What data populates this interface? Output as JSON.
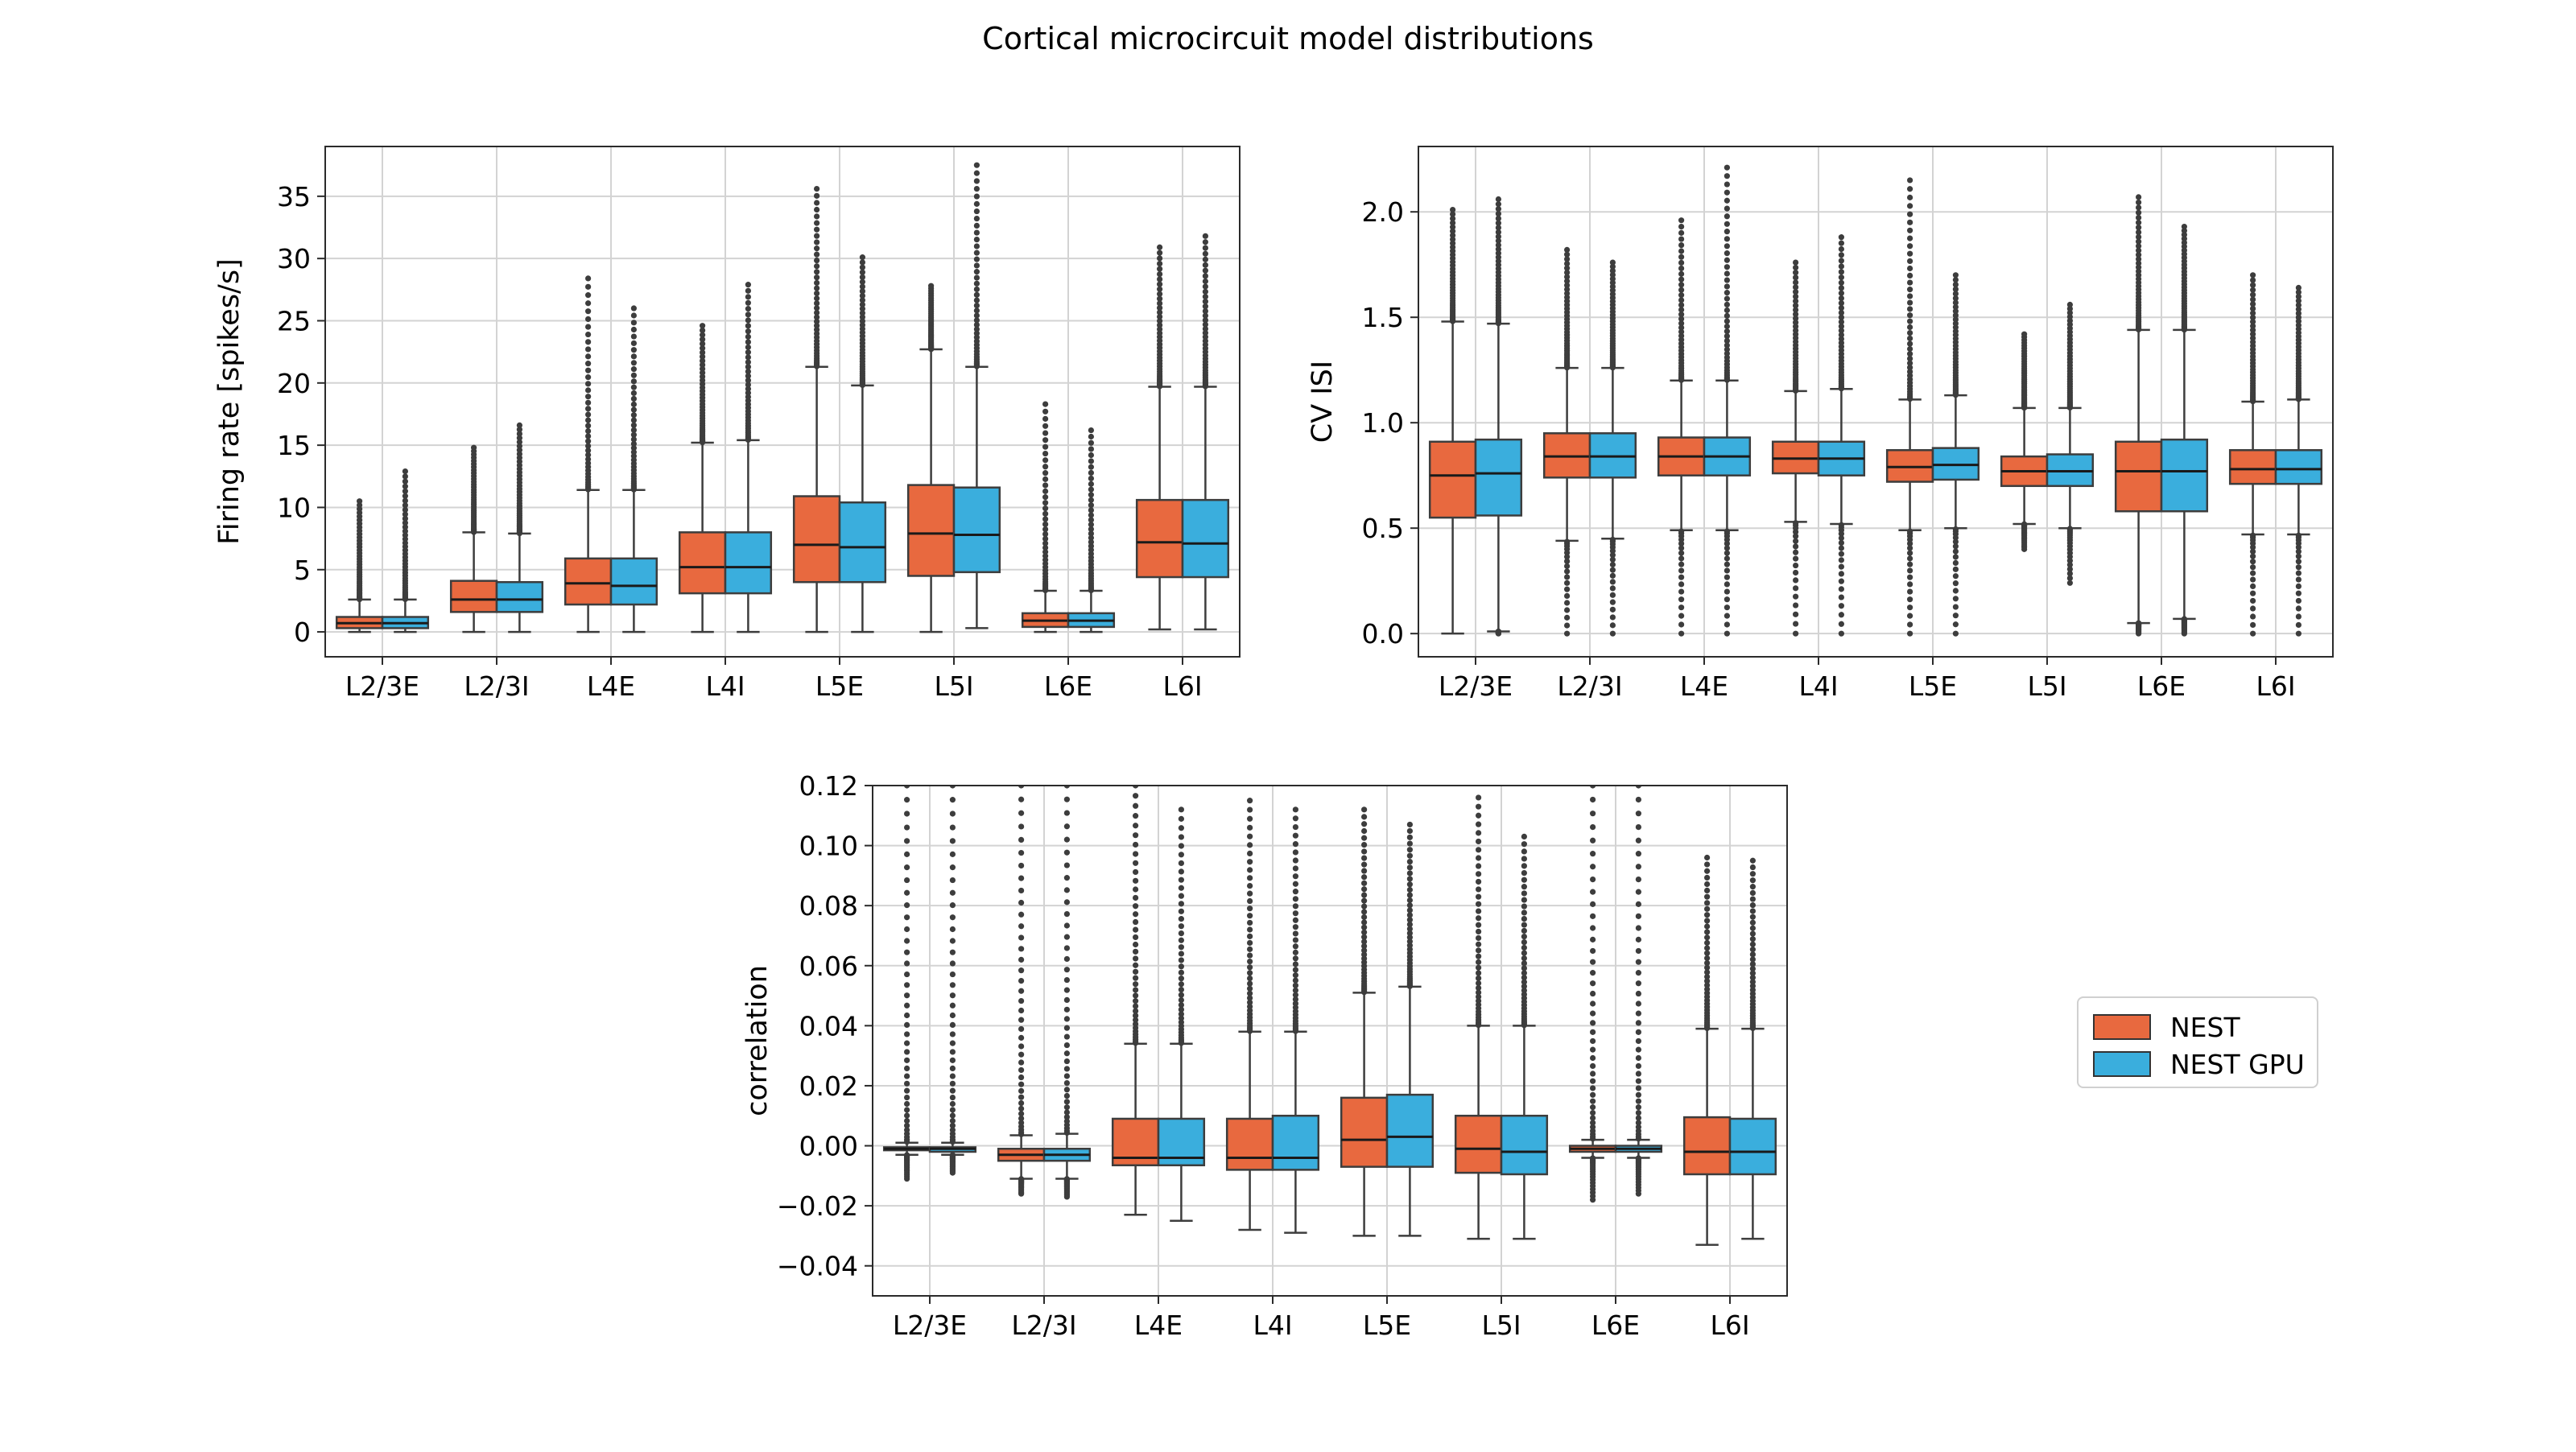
{
  "title": "Cortical microcircuit model distributions",
  "colors": {
    "nest": "#e8693f",
    "nestgpu": "#3aaedd"
  },
  "legend": {
    "items": [
      {
        "label": "NEST",
        "color": "#e8693f"
      },
      {
        "label": "NEST GPU",
        "color": "#3aaedd"
      }
    ]
  },
  "chart_data": [
    {
      "type": "box",
      "title": "",
      "xlabel": "",
      "ylabel": "Firing rate [spikes/s]",
      "categories": [
        "L2/3E",
        "L2/3I",
        "L4E",
        "L4I",
        "L5E",
        "L5I",
        "L6E",
        "L6I"
      ],
      "ylim": [
        -2,
        39
      ],
      "yticks": [
        0,
        5,
        10,
        15,
        20,
        25,
        30,
        35
      ],
      "ytick_labels": [
        "0",
        "5",
        "10",
        "15",
        "20",
        "25",
        "30",
        "35"
      ],
      "grid": true,
      "series": [
        {
          "name": "NEST",
          "boxes": [
            {
              "whislo": 0.0,
              "q1": 0.3,
              "med": 0.7,
              "q3": 1.2,
              "whishi": 2.6,
              "fmin": 0.0,
              "fmax": 10.5
            },
            {
              "whislo": 0.0,
              "q1": 1.6,
              "med": 2.6,
              "q3": 4.1,
              "whishi": 8.0,
              "fmin": 0.0,
              "fmax": 14.8
            },
            {
              "whislo": 0.0,
              "q1": 2.2,
              "med": 3.9,
              "q3": 5.9,
              "whishi": 11.4,
              "fmin": 0.0,
              "fmax": 28.4
            },
            {
              "whislo": 0.0,
              "q1": 3.1,
              "med": 5.2,
              "q3": 8.0,
              "whishi": 15.2,
              "fmin": 0.0,
              "fmax": 24.6
            },
            {
              "whislo": 0.0,
              "q1": 4.0,
              "med": 7.0,
              "q3": 10.9,
              "whishi": 21.3,
              "fmin": 0.0,
              "fmax": 35.6
            },
            {
              "whislo": 0.0,
              "q1": 4.5,
              "med": 7.9,
              "q3": 11.8,
              "whishi": 22.7,
              "fmin": 0.0,
              "fmax": 27.8
            },
            {
              "whislo": 0.0,
              "q1": 0.4,
              "med": 0.9,
              "q3": 1.5,
              "whishi": 3.3,
              "fmin": 0.0,
              "fmax": 18.3
            },
            {
              "whislo": 0.2,
              "q1": 4.4,
              "med": 7.2,
              "q3": 10.6,
              "whishi": 19.7,
              "fmin": 0.2,
              "fmax": 30.9
            }
          ]
        },
        {
          "name": "NEST GPU",
          "boxes": [
            {
              "whislo": 0.0,
              "q1": 0.3,
              "med": 0.7,
              "q3": 1.2,
              "whishi": 2.6,
              "fmin": 0.0,
              "fmax": 12.9
            },
            {
              "whislo": 0.0,
              "q1": 1.6,
              "med": 2.6,
              "q3": 4.0,
              "whishi": 7.9,
              "fmin": 0.0,
              "fmax": 16.6
            },
            {
              "whislo": 0.0,
              "q1": 2.2,
              "med": 3.7,
              "q3": 5.9,
              "whishi": 11.4,
              "fmin": 0.0,
              "fmax": 26.0
            },
            {
              "whislo": 0.0,
              "q1": 3.1,
              "med": 5.2,
              "q3": 8.0,
              "whishi": 15.4,
              "fmin": 0.0,
              "fmax": 27.9
            },
            {
              "whislo": 0.0,
              "q1": 4.0,
              "med": 6.8,
              "q3": 10.4,
              "whishi": 19.8,
              "fmin": 0.0,
              "fmax": 30.1
            },
            {
              "whislo": 0.3,
              "q1": 4.8,
              "med": 7.8,
              "q3": 11.6,
              "whishi": 21.3,
              "fmin": 0.3,
              "fmax": 37.5
            },
            {
              "whislo": 0.0,
              "q1": 0.4,
              "med": 0.9,
              "q3": 1.5,
              "whishi": 3.3,
              "fmin": 0.0,
              "fmax": 16.2
            },
            {
              "whislo": 0.2,
              "q1": 4.4,
              "med": 7.1,
              "q3": 10.6,
              "whishi": 19.7,
              "fmin": 0.2,
              "fmax": 31.8
            }
          ]
        }
      ]
    },
    {
      "type": "box",
      "title": "",
      "xlabel": "",
      "ylabel": "CV ISI",
      "categories": [
        "L2/3E",
        "L2/3I",
        "L4E",
        "L4I",
        "L5E",
        "L5I",
        "L6E",
        "L6I"
      ],
      "ylim": [
        -0.11,
        2.31
      ],
      "yticks": [
        0.0,
        0.5,
        1.0,
        1.5,
        2.0
      ],
      "ytick_labels": [
        "0.0",
        "0.5",
        "1.0",
        "1.5",
        "2.0"
      ],
      "grid": true,
      "series": [
        {
          "name": "NEST",
          "boxes": [
            {
              "whislo": 0.0,
              "q1": 0.55,
              "med": 0.75,
              "q3": 0.91,
              "whishi": 1.48,
              "fmin": 0.0,
              "fmax": 2.01
            },
            {
              "whislo": 0.44,
              "q1": 0.74,
              "med": 0.84,
              "q3": 0.95,
              "whishi": 1.26,
              "fmin": 0.0,
              "fmax": 1.82
            },
            {
              "whislo": 0.49,
              "q1": 0.75,
              "med": 0.84,
              "q3": 0.93,
              "whishi": 1.2,
              "fmin": 0.0,
              "fmax": 1.96
            },
            {
              "whislo": 0.53,
              "q1": 0.76,
              "med": 0.83,
              "q3": 0.91,
              "whishi": 1.15,
              "fmin": 0.0,
              "fmax": 1.76
            },
            {
              "whislo": 0.49,
              "q1": 0.72,
              "med": 0.79,
              "q3": 0.87,
              "whishi": 1.11,
              "fmin": 0.0,
              "fmax": 2.15
            },
            {
              "whislo": 0.52,
              "q1": 0.7,
              "med": 0.77,
              "q3": 0.84,
              "whishi": 1.07,
              "fmin": 0.4,
              "fmax": 1.42
            },
            {
              "whislo": 0.05,
              "q1": 0.58,
              "med": 0.77,
              "q3": 0.91,
              "whishi": 1.44,
              "fmin": 0.0,
              "fmax": 2.07
            },
            {
              "whislo": 0.47,
              "q1": 0.71,
              "med": 0.78,
              "q3": 0.87,
              "whishi": 1.1,
              "fmin": 0.0,
              "fmax": 1.7
            }
          ]
        },
        {
          "name": "NEST GPU",
          "boxes": [
            {
              "whislo": 0.01,
              "q1": 0.56,
              "med": 0.76,
              "q3": 0.92,
              "whishi": 1.47,
              "fmin": 0.0,
              "fmax": 2.06
            },
            {
              "whislo": 0.45,
              "q1": 0.74,
              "med": 0.84,
              "q3": 0.95,
              "whishi": 1.26,
              "fmin": 0.0,
              "fmax": 1.76
            },
            {
              "whislo": 0.49,
              "q1": 0.75,
              "med": 0.84,
              "q3": 0.93,
              "whishi": 1.2,
              "fmin": 0.0,
              "fmax": 2.21
            },
            {
              "whislo": 0.52,
              "q1": 0.75,
              "med": 0.83,
              "q3": 0.91,
              "whishi": 1.16,
              "fmin": 0.0,
              "fmax": 1.88
            },
            {
              "whislo": 0.5,
              "q1": 0.73,
              "med": 0.8,
              "q3": 0.88,
              "whishi": 1.13,
              "fmin": 0.0,
              "fmax": 1.7
            },
            {
              "whislo": 0.5,
              "q1": 0.7,
              "med": 0.77,
              "q3": 0.85,
              "whishi": 1.07,
              "fmin": 0.24,
              "fmax": 1.56
            },
            {
              "whislo": 0.07,
              "q1": 0.58,
              "med": 0.77,
              "q3": 0.92,
              "whishi": 1.44,
              "fmin": 0.0,
              "fmax": 1.93
            },
            {
              "whislo": 0.47,
              "q1": 0.71,
              "med": 0.78,
              "q3": 0.87,
              "whishi": 1.11,
              "fmin": 0.0,
              "fmax": 1.64
            }
          ]
        }
      ]
    },
    {
      "type": "box",
      "title": "",
      "xlabel": "",
      "ylabel": "correlation",
      "categories": [
        "L2/3E",
        "L2/3I",
        "L4E",
        "L4I",
        "L5E",
        "L5I",
        "L6E",
        "L6I"
      ],
      "ylim": [
        -0.05,
        0.12
      ],
      "yticks": [
        -0.04,
        -0.02,
        0.0,
        0.02,
        0.04,
        0.06,
        0.08,
        0.1,
        0.12
      ],
      "ytick_labels": [
        "−0.04",
        "−0.02",
        "0.00",
        "0.02",
        "0.04",
        "0.06",
        "0.08",
        "0.10",
        "0.12"
      ],
      "grid": true,
      "series": [
        {
          "name": "NEST",
          "boxes": [
            {
              "whislo": -0.003,
              "q1": -0.0015,
              "med": -0.001,
              "q3": -0.0005,
              "whishi": 0.001,
              "fmin": -0.011,
              "fmax": 0.12
            },
            {
              "whislo": -0.011,
              "q1": -0.005,
              "med": -0.003,
              "q3": -0.001,
              "whishi": 0.0035,
              "fmin": -0.016,
              "fmax": 0.12
            },
            {
              "whislo": -0.023,
              "q1": -0.0065,
              "med": -0.004,
              "q3": 0.009,
              "whishi": 0.034,
              "fmin": -0.023,
              "fmax": 0.12
            },
            {
              "whislo": -0.028,
              "q1": -0.008,
              "med": -0.004,
              "q3": 0.009,
              "whishi": 0.038,
              "fmin": -0.028,
              "fmax": 0.115
            },
            {
              "whislo": -0.03,
              "q1": -0.007,
              "med": 0.002,
              "q3": 0.016,
              "whishi": 0.051,
              "fmin": -0.03,
              "fmax": 0.112
            },
            {
              "whislo": -0.031,
              "q1": -0.009,
              "med": -0.001,
              "q3": 0.01,
              "whishi": 0.04,
              "fmin": -0.031,
              "fmax": 0.116
            },
            {
              "whislo": -0.004,
              "q1": -0.002,
              "med": -0.001,
              "q3": 0.0,
              "whishi": 0.002,
              "fmin": -0.018,
              "fmax": 0.12
            },
            {
              "whislo": -0.033,
              "q1": -0.0095,
              "med": -0.002,
              "q3": 0.0095,
              "whishi": 0.039,
              "fmin": -0.033,
              "fmax": 0.096
            }
          ]
        },
        {
          "name": "NEST GPU",
          "boxes": [
            {
              "whislo": -0.003,
              "q1": -0.002,
              "med": -0.001,
              "q3": -0.0005,
              "whishi": 0.001,
              "fmin": -0.009,
              "fmax": 0.12
            },
            {
              "whislo": -0.011,
              "q1": -0.005,
              "med": -0.003,
              "q3": -0.001,
              "whishi": 0.004,
              "fmin": -0.017,
              "fmax": 0.12
            },
            {
              "whislo": -0.025,
              "q1": -0.0065,
              "med": -0.004,
              "q3": 0.009,
              "whishi": 0.034,
              "fmin": -0.025,
              "fmax": 0.112
            },
            {
              "whislo": -0.029,
              "q1": -0.008,
              "med": -0.004,
              "q3": 0.01,
              "whishi": 0.038,
              "fmin": -0.029,
              "fmax": 0.112
            },
            {
              "whislo": -0.03,
              "q1": -0.007,
              "med": 0.003,
              "q3": 0.017,
              "whishi": 0.053,
              "fmin": -0.03,
              "fmax": 0.107
            },
            {
              "whislo": -0.031,
              "q1": -0.0095,
              "med": -0.002,
              "q3": 0.01,
              "whishi": 0.04,
              "fmin": -0.031,
              "fmax": 0.103
            },
            {
              "whislo": -0.004,
              "q1": -0.002,
              "med": -0.001,
              "q3": 0.0,
              "whishi": 0.002,
              "fmin": -0.016,
              "fmax": 0.12
            },
            {
              "whislo": -0.031,
              "q1": -0.0095,
              "med": -0.002,
              "q3": 0.009,
              "whishi": 0.039,
              "fmin": -0.031,
              "fmax": 0.095
            }
          ]
        }
      ]
    }
  ]
}
